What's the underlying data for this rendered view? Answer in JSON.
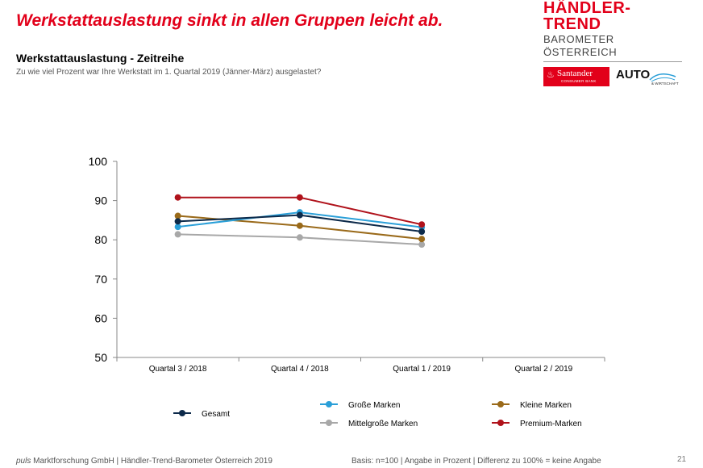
{
  "headline": "Werkstattauslastung sinkt in allen Gruppen leicht ab.",
  "logo": {
    "title": "HÄNDLER-TREND",
    "subtitle": "BAROMETER ÖSTERREICH",
    "santander": "Santander",
    "santander_sub": "CONSUMER BANK",
    "auto": "AUTO",
    "auto_sub": "& WIRTSCHAFT"
  },
  "section_title": "Werkstattauslastung - Zeitreihe",
  "section_subtitle": "Zu wie viel Prozent war Ihre Werkstatt im 1. Quartal 2019 (Jänner-März) ausgelastet?",
  "chart_data": {
    "type": "line",
    "categories": [
      "Quartal 3 / 2018",
      "Quartal 4 / 2018",
      "Quartal 1 / 2019",
      "Quartal 2 / 2019"
    ],
    "ylim": [
      50,
      100
    ],
    "yticks": [
      50,
      60,
      70,
      80,
      90,
      100
    ],
    "grid": false,
    "legend_position": "bottom",
    "series": [
      {
        "name": "Gesamt",
        "color": "#0d2a4a",
        "values": [
          84.7,
          86.3,
          82.1,
          null
        ]
      },
      {
        "name": "Große Marken",
        "color": "#2a9fd8",
        "values": [
          83.3,
          87.0,
          83.2,
          null
        ]
      },
      {
        "name": "Kleine Marken",
        "color": "#9a6a1a",
        "values": [
          86.1,
          83.6,
          80.2,
          null
        ]
      },
      {
        "name": "Mittelgroße Marken",
        "color": "#a8a8a8",
        "values": [
          81.4,
          80.6,
          78.8,
          null
        ]
      },
      {
        "name": "Premium-Marken",
        "color": "#b0121b",
        "values": [
          90.8,
          90.8,
          83.9,
          null
        ]
      }
    ]
  },
  "footer": {
    "company": "puls",
    "left": "Marktforschung GmbH | Händler-Trend-Barometer Österreich 2019",
    "right": "Basis: n=100 | Angabe in Prozent | Differenz zu 100% = keine Angabe",
    "page": "21"
  }
}
